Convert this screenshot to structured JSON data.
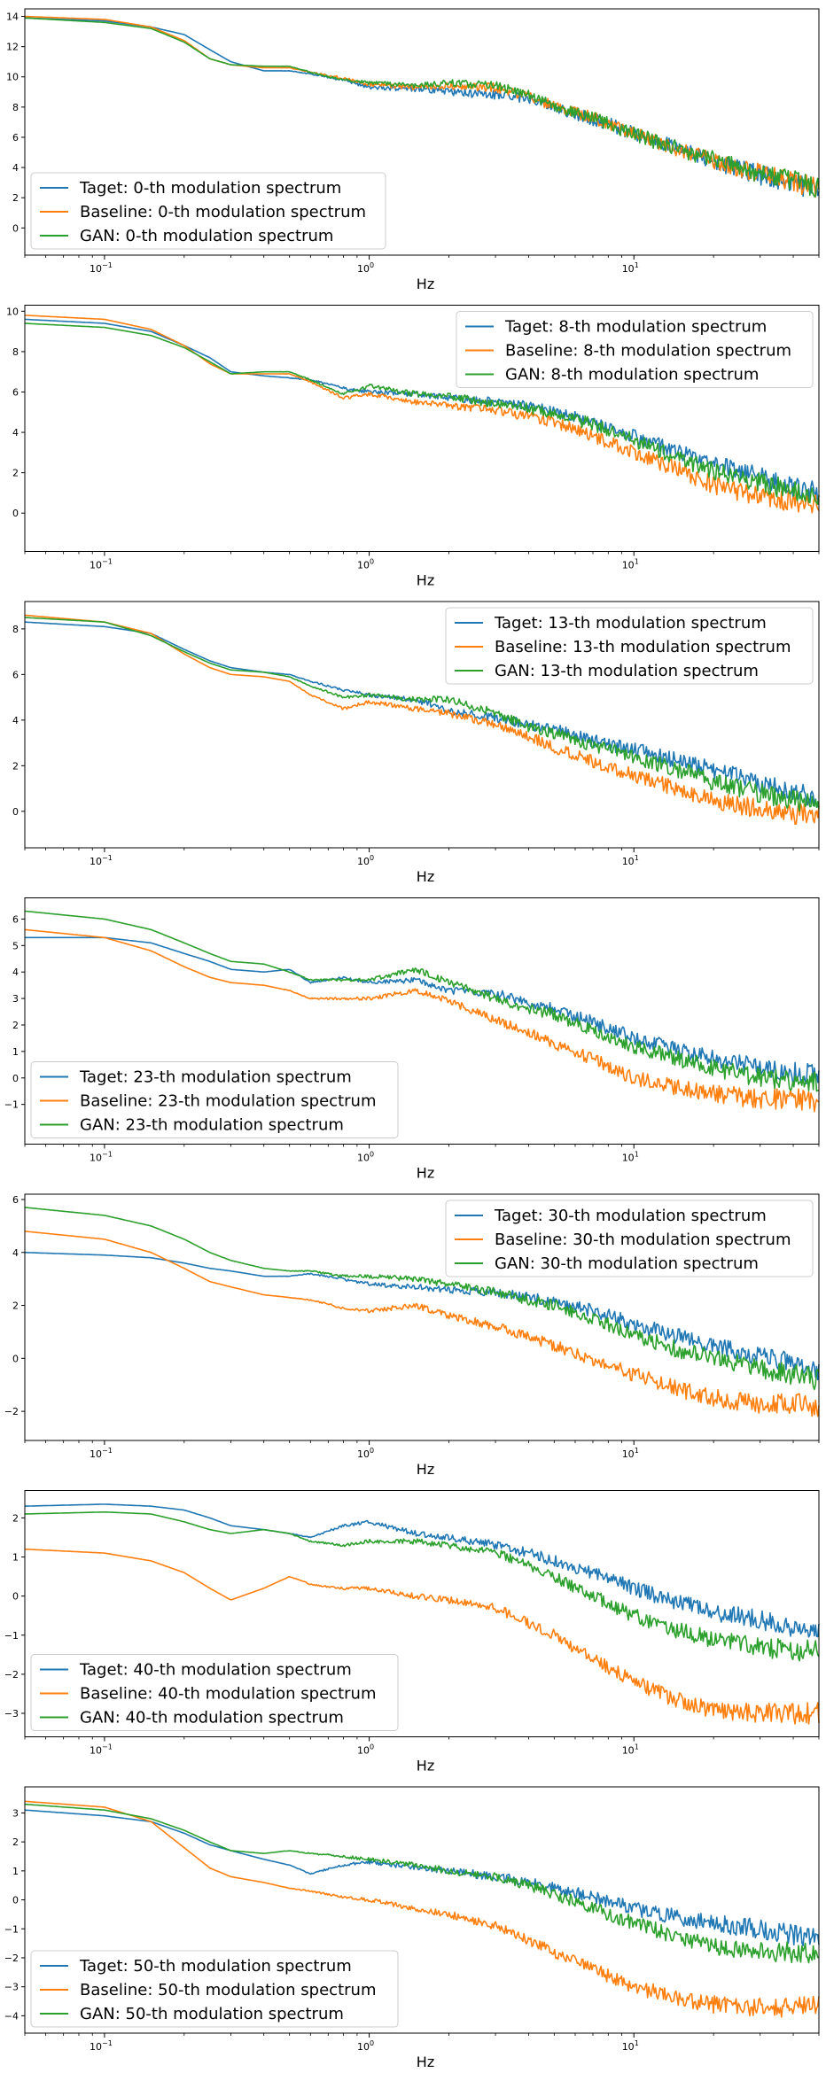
{
  "colors": {
    "target": "#1f77b4",
    "baseline": "#ff7f0e",
    "gan": "#2ca02c"
  },
  "chart_data": [
    {
      "type": "line",
      "xscale": "log",
      "xlim": [
        0.05,
        50
      ],
      "ylim": [
        -1.8,
        14.5
      ],
      "yticks": [
        0,
        2,
        4,
        6,
        8,
        10,
        12,
        14
      ],
      "xlabel": "Hz",
      "legend_loc": "lower-left",
      "x": [
        0.05,
        0.1,
        0.15,
        0.2,
        0.25,
        0.3,
        0.4,
        0.5,
        0.6,
        0.8,
        1.0,
        1.5,
        2.0,
        3.0,
        4.0,
        5.0,
        7.0,
        10.0,
        15.0,
        20.0,
        30.0,
        40.0,
        50.0
      ],
      "series": [
        {
          "name": "Taget: 0-th modulation spectrum",
          "values": [
            13.9,
            13.7,
            13.3,
            12.8,
            11.8,
            11.0,
            10.4,
            10.4,
            10.2,
            9.8,
            9.3,
            9.2,
            9.0,
            8.8,
            8.6,
            8.0,
            7.2,
            6.3,
            5.2,
            4.4,
            3.5,
            3.0,
            2.5
          ]
        },
        {
          "name": "Baseline: 0-th modulation spectrum",
          "values": [
            14.0,
            13.8,
            13.3,
            12.4,
            11.2,
            10.8,
            10.6,
            10.6,
            10.3,
            9.9,
            9.5,
            9.3,
            9.4,
            9.3,
            8.7,
            8.1,
            7.3,
            6.3,
            5.2,
            4.5,
            3.6,
            3.1,
            2.6
          ]
        },
        {
          "name": "GAN: 0-th modulation spectrum",
          "values": [
            13.9,
            13.6,
            13.2,
            12.3,
            11.2,
            10.8,
            10.7,
            10.7,
            10.3,
            9.8,
            9.6,
            9.4,
            9.6,
            9.4,
            8.8,
            8.1,
            7.3,
            6.2,
            5.2,
            4.5,
            3.6,
            3.1,
            2.7
          ]
        }
      ]
    },
    {
      "type": "line",
      "xscale": "log",
      "xlim": [
        0.05,
        50
      ],
      "ylim": [
        -1.9,
        10.3
      ],
      "yticks": [
        0,
        2,
        4,
        6,
        8,
        10
      ],
      "xlabel": "Hz",
      "legend_loc": "upper-right",
      "x": [
        0.05,
        0.1,
        0.15,
        0.2,
        0.25,
        0.3,
        0.4,
        0.5,
        0.6,
        0.8,
        1.0,
        1.5,
        2.0,
        3.0,
        4.0,
        5.0,
        7.0,
        10.0,
        15.0,
        20.0,
        30.0,
        40.0,
        50.0
      ],
      "series": [
        {
          "name": "Taget: 8-th modulation spectrum",
          "values": [
            9.6,
            9.4,
            9.0,
            8.3,
            7.7,
            7.0,
            6.8,
            6.7,
            6.6,
            6.2,
            6.0,
            5.9,
            5.7,
            5.5,
            5.3,
            5.0,
            4.5,
            3.8,
            3.0,
            2.4,
            1.8,
            1.3,
            1.0
          ]
        },
        {
          "name": "Baseline: 8-th modulation spectrum",
          "values": [
            9.8,
            9.6,
            9.1,
            8.3,
            7.4,
            6.9,
            6.9,
            6.9,
            6.5,
            5.7,
            5.9,
            5.5,
            5.3,
            5.1,
            4.8,
            4.5,
            3.8,
            3.0,
            2.1,
            1.4,
            0.8,
            0.6,
            0.5
          ]
        },
        {
          "name": "GAN: 8-th modulation spectrum",
          "values": [
            9.4,
            9.2,
            8.8,
            8.2,
            7.5,
            6.9,
            7.0,
            7.0,
            6.6,
            5.9,
            6.3,
            5.9,
            5.8,
            5.4,
            5.2,
            4.9,
            4.4,
            3.6,
            2.7,
            2.1,
            1.5,
            1.1,
            0.9
          ]
        }
      ]
    },
    {
      "type": "line",
      "xscale": "log",
      "xlim": [
        0.05,
        50
      ],
      "ylim": [
        -1.6,
        9.2
      ],
      "yticks": [
        0,
        2,
        4,
        6,
        8
      ],
      "xlabel": "Hz",
      "legend_loc": "upper-right",
      "x": [
        0.05,
        0.1,
        0.15,
        0.2,
        0.25,
        0.3,
        0.4,
        0.5,
        0.6,
        0.8,
        1.0,
        1.5,
        2.0,
        3.0,
        4.0,
        5.0,
        7.0,
        10.0,
        15.0,
        20.0,
        30.0,
        40.0,
        50.0
      ],
      "series": [
        {
          "name": "Taget: 13-th modulation spectrum",
          "values": [
            8.3,
            8.1,
            7.8,
            7.1,
            6.6,
            6.3,
            6.1,
            6.0,
            5.7,
            5.3,
            5.1,
            4.9,
            4.4,
            4.1,
            3.8,
            3.6,
            3.1,
            2.7,
            2.2,
            1.8,
            1.2,
            0.8,
            0.6
          ]
        },
        {
          "name": "Baseline: 13-th modulation spectrum",
          "values": [
            8.6,
            8.3,
            7.8,
            6.9,
            6.3,
            6.0,
            5.9,
            5.7,
            5.1,
            4.5,
            4.8,
            4.5,
            4.3,
            3.8,
            3.3,
            2.8,
            2.2,
            1.6,
            0.9,
            0.5,
            0.1,
            -0.1,
            -0.2
          ]
        },
        {
          "name": "GAN: 13-th modulation spectrum",
          "values": [
            8.5,
            8.3,
            7.7,
            7.0,
            6.5,
            6.2,
            6.1,
            5.9,
            5.5,
            5.0,
            5.1,
            4.9,
            4.9,
            4.3,
            3.7,
            3.4,
            2.9,
            2.4,
            1.8,
            1.3,
            0.8,
            0.5,
            0.3
          ]
        }
      ]
    },
    {
      "type": "line",
      "xscale": "log",
      "xlim": [
        0.05,
        50
      ],
      "ylim": [
        -2.5,
        6.8
      ],
      "yticks": [
        -1,
        0,
        1,
        2,
        3,
        4,
        5,
        6
      ],
      "xlabel": "Hz",
      "legend_loc": "lower-left",
      "x": [
        0.05,
        0.1,
        0.15,
        0.2,
        0.25,
        0.3,
        0.4,
        0.5,
        0.6,
        0.8,
        1.0,
        1.5,
        2.0,
        3.0,
        4.0,
        5.0,
        7.0,
        10.0,
        15.0,
        20.0,
        30.0,
        40.0,
        50.0
      ],
      "series": [
        {
          "name": "Taget: 23-th modulation spectrum",
          "values": [
            5.3,
            5.3,
            5.1,
            4.7,
            4.4,
            4.1,
            4.0,
            4.1,
            3.6,
            3.8,
            3.6,
            3.7,
            3.3,
            3.2,
            2.8,
            2.6,
            2.1,
            1.5,
            1.0,
            0.7,
            0.4,
            0.2,
            0.1
          ]
        },
        {
          "name": "Baseline: 23-th modulation spectrum",
          "values": [
            5.6,
            5.3,
            4.8,
            4.2,
            3.8,
            3.6,
            3.5,
            3.3,
            3.0,
            3.0,
            3.0,
            3.3,
            2.9,
            2.2,
            1.7,
            1.3,
            0.7,
            0.0,
            -0.4,
            -0.6,
            -0.8,
            -0.8,
            -0.9
          ]
        },
        {
          "name": "GAN: 23-th modulation spectrum",
          "values": [
            6.3,
            6.0,
            5.6,
            5.1,
            4.7,
            4.4,
            4.3,
            4.0,
            3.7,
            3.7,
            3.7,
            4.1,
            3.6,
            3.0,
            2.6,
            2.4,
            1.8,
            1.2,
            0.7,
            0.4,
            0.0,
            -0.1,
            -0.2
          ]
        }
      ]
    },
    {
      "type": "line",
      "xscale": "log",
      "xlim": [
        0.05,
        50
      ],
      "ylim": [
        -3.1,
        6.2
      ],
      "yticks": [
        -2,
        0,
        2,
        4,
        6
      ],
      "xlabel": "Hz",
      "legend_loc": "upper-right",
      "x": [
        0.05,
        0.1,
        0.15,
        0.2,
        0.25,
        0.3,
        0.4,
        0.5,
        0.6,
        0.8,
        1.0,
        1.5,
        2.0,
        3.0,
        4.0,
        5.0,
        7.0,
        10.0,
        15.0,
        20.0,
        30.0,
        40.0,
        50.0
      ],
      "series": [
        {
          "name": "Taget: 30-th modulation spectrum",
          "values": [
            4.0,
            3.9,
            3.8,
            3.6,
            3.4,
            3.3,
            3.1,
            3.1,
            3.2,
            3.0,
            2.8,
            2.7,
            2.6,
            2.5,
            2.3,
            2.1,
            1.8,
            1.3,
            0.8,
            0.5,
            0.1,
            -0.2,
            -0.4
          ]
        },
        {
          "name": "Baseline: 30-th modulation spectrum",
          "values": [
            4.8,
            4.5,
            4.0,
            3.4,
            2.9,
            2.7,
            2.4,
            2.3,
            2.2,
            1.9,
            1.8,
            2.0,
            1.6,
            1.2,
            0.8,
            0.5,
            -0.1,
            -0.6,
            -1.2,
            -1.5,
            -1.7,
            -1.7,
            -1.8
          ]
        },
        {
          "name": "GAN: 30-th modulation spectrum",
          "values": [
            5.7,
            5.4,
            5.0,
            4.5,
            4.0,
            3.7,
            3.4,
            3.3,
            3.3,
            3.1,
            3.1,
            3.0,
            2.8,
            2.5,
            2.2,
            2.0,
            1.5,
            0.9,
            0.3,
            0.0,
            -0.4,
            -0.6,
            -0.8
          ]
        }
      ]
    },
    {
      "type": "line",
      "xscale": "log",
      "xlim": [
        0.05,
        50
      ],
      "ylim": [
        -3.6,
        2.7
      ],
      "yticks": [
        -3,
        -2,
        -1,
        0,
        1,
        2
      ],
      "xlabel": "Hz",
      "legend_loc": "lower-left",
      "x": [
        0.05,
        0.1,
        0.15,
        0.2,
        0.25,
        0.3,
        0.4,
        0.5,
        0.6,
        0.8,
        1.0,
        1.5,
        2.0,
        3.0,
        4.0,
        5.0,
        7.0,
        10.0,
        15.0,
        20.0,
        30.0,
        40.0,
        50.0
      ],
      "series": [
        {
          "name": "Taget: 40-th modulation spectrum",
          "values": [
            2.3,
            2.35,
            2.3,
            2.2,
            2.0,
            1.8,
            1.7,
            1.6,
            1.5,
            1.8,
            1.9,
            1.6,
            1.5,
            1.3,
            1.1,
            0.9,
            0.6,
            0.2,
            -0.2,
            -0.4,
            -0.6,
            -0.8,
            -0.9
          ]
        },
        {
          "name": "Baseline: 40-th modulation spectrum",
          "values": [
            1.2,
            1.1,
            0.9,
            0.6,
            0.2,
            -0.1,
            0.2,
            0.5,
            0.3,
            0.2,
            0.2,
            0.0,
            -0.1,
            -0.3,
            -0.7,
            -1.0,
            -1.6,
            -2.2,
            -2.7,
            -2.9,
            -3.0,
            -3.0,
            -3.0
          ]
        },
        {
          "name": "GAN: 40-th modulation spectrum",
          "values": [
            2.1,
            2.15,
            2.1,
            1.9,
            1.7,
            1.6,
            1.7,
            1.6,
            1.4,
            1.3,
            1.4,
            1.4,
            1.3,
            1.1,
            0.8,
            0.5,
            0.0,
            -0.5,
            -0.9,
            -1.1,
            -1.3,
            -1.4,
            -1.4
          ]
        }
      ]
    },
    {
      "type": "line",
      "xscale": "log",
      "xlim": [
        0.05,
        50
      ],
      "ylim": [
        -4.6,
        3.9
      ],
      "yticks": [
        -4,
        -3,
        -2,
        -1,
        0,
        1,
        2,
        3
      ],
      "xlabel": "Hz",
      "legend_loc": "lower-left",
      "x": [
        0.05,
        0.1,
        0.15,
        0.2,
        0.25,
        0.3,
        0.4,
        0.5,
        0.6,
        0.8,
        1.0,
        1.5,
        2.0,
        3.0,
        4.0,
        5.0,
        7.0,
        10.0,
        15.0,
        20.0,
        30.0,
        40.0,
        50.0
      ],
      "series": [
        {
          "name": "Taget: 50-th modulation spectrum",
          "values": [
            3.1,
            2.9,
            2.7,
            2.3,
            1.9,
            1.7,
            1.4,
            1.2,
            0.9,
            1.2,
            1.3,
            1.1,
            1.0,
            0.8,
            0.6,
            0.4,
            0.1,
            -0.3,
            -0.6,
            -0.8,
            -1.0,
            -1.2,
            -1.3
          ]
        },
        {
          "name": "Baseline: 50-th modulation spectrum",
          "values": [
            3.4,
            3.2,
            2.7,
            1.8,
            1.1,
            0.8,
            0.6,
            0.4,
            0.3,
            0.1,
            0.0,
            -0.3,
            -0.5,
            -0.9,
            -1.4,
            -1.8,
            -2.4,
            -3.0,
            -3.4,
            -3.6,
            -3.7,
            -3.7,
            -3.7
          ]
        },
        {
          "name": "GAN: 50-th modulation spectrum",
          "values": [
            3.3,
            3.1,
            2.8,
            2.4,
            2.0,
            1.7,
            1.6,
            1.7,
            1.6,
            1.5,
            1.4,
            1.2,
            1.0,
            0.8,
            0.5,
            0.2,
            -0.3,
            -0.8,
            -1.3,
            -1.6,
            -1.8,
            -1.8,
            -1.8
          ]
        }
      ]
    }
  ]
}
